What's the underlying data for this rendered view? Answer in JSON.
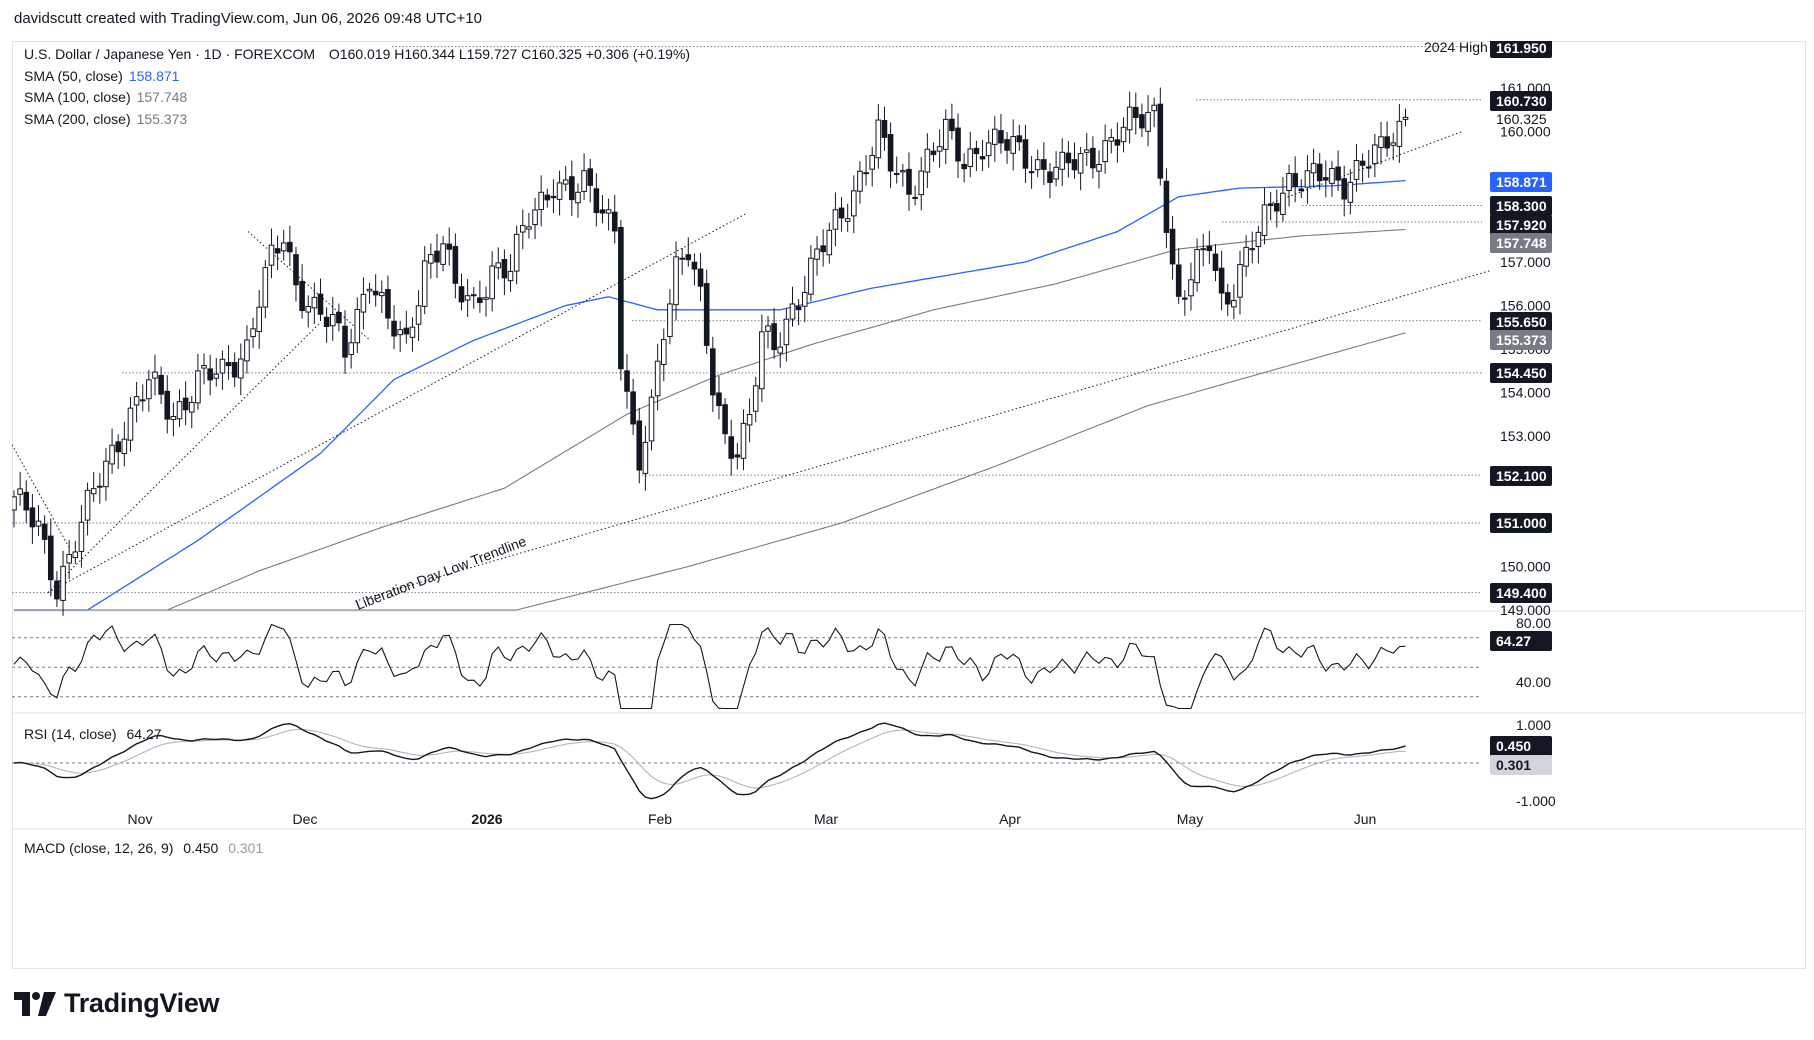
{
  "header": {
    "credit": "davidscutt created with TradingView.com, Jun 06, 2026 09:48 UTC+10"
  },
  "brand": {
    "name": "TradingView"
  },
  "legend": {
    "symbol": "U.S. Dollar / Japanese Yen · 1D · FOREXCOM",
    "ohlc": "O160.019  H160.344  L159.727  C160.325  +0.306 (+0.19%)",
    "sma50": {
      "label": "SMA (50, close)",
      "value": "158.871",
      "color": "#2962ff"
    },
    "sma100": {
      "label": "SMA (100, close)",
      "value": "157.748",
      "color": "#787b86"
    },
    "sma200": {
      "label": "SMA (200, close)",
      "value": "155.373",
      "color": "#787b86"
    }
  },
  "rsi_legend": {
    "label": "RSI (14, close)",
    "value": "64.27"
  },
  "macd_legend": {
    "label": "MACD (close, 12, 26, 9)",
    "macd": "0.450",
    "signal": "0.301"
  },
  "annotations": {
    "high_2024": "2024 High",
    "trendline": "Liberation Day Low Trendline"
  },
  "chart_data": {
    "type": "candlestick",
    "title": "U.S. Dollar / Japanese Yen · 1D · FOREXCOM",
    "x_labels": [
      "Nov",
      "Dec",
      "2026",
      "Feb",
      "Mar",
      "Apr",
      "May",
      "Jun"
    ],
    "y_ticks": [
      "161.000",
      "160.000",
      "157.000",
      "156.000",
      "155.000",
      "154.000",
      "153.000",
      "150.000",
      "149.000"
    ],
    "ylim": [
      149.0,
      162.0
    ],
    "price_labels": [
      {
        "value": "161.950",
        "style": "dark"
      },
      {
        "value": "160.730",
        "style": "dark"
      },
      {
        "value": "160.325",
        "style": "plain"
      },
      {
        "value": "158.871",
        "style": "blue"
      },
      {
        "value": "158.300",
        "style": "dark"
      },
      {
        "value": "157.920",
        "style": "dark"
      },
      {
        "value": "157.748",
        "style": "grey"
      },
      {
        "value": "155.650",
        "style": "dark"
      },
      {
        "value": "155.373",
        "style": "grey"
      },
      {
        "value": "154.450",
        "style": "dark"
      },
      {
        "value": "152.100",
        "style": "dark"
      },
      {
        "value": "151.000",
        "style": "dark"
      },
      {
        "value": "149.400",
        "style": "dark"
      }
    ],
    "horizontal_levels": [
      161.95,
      160.73,
      158.3,
      157.92,
      155.65,
      154.45,
      152.1,
      151.0,
      149.4
    ],
    "last_close": 160.325,
    "series": [
      {
        "name": "SMA (50, close)",
        "color": "#2962ff"
      },
      {
        "name": "SMA (100, close)",
        "color": "#787b86"
      },
      {
        "name": "SMA (200, close)",
        "color": "#787b86"
      }
    ],
    "rsi": {
      "last": 64.27,
      "levels": [
        70,
        50,
        30
      ],
      "ticks": [
        "80.00",
        "40.00"
      ],
      "ylim": [
        20,
        80
      ]
    },
    "macd": {
      "macd_last": 0.45,
      "signal_last": 0.301,
      "ticks": [
        "1.000",
        "-1.000"
      ],
      "ylim": [
        -1.0,
        1.0
      ]
    },
    "grid": false
  }
}
